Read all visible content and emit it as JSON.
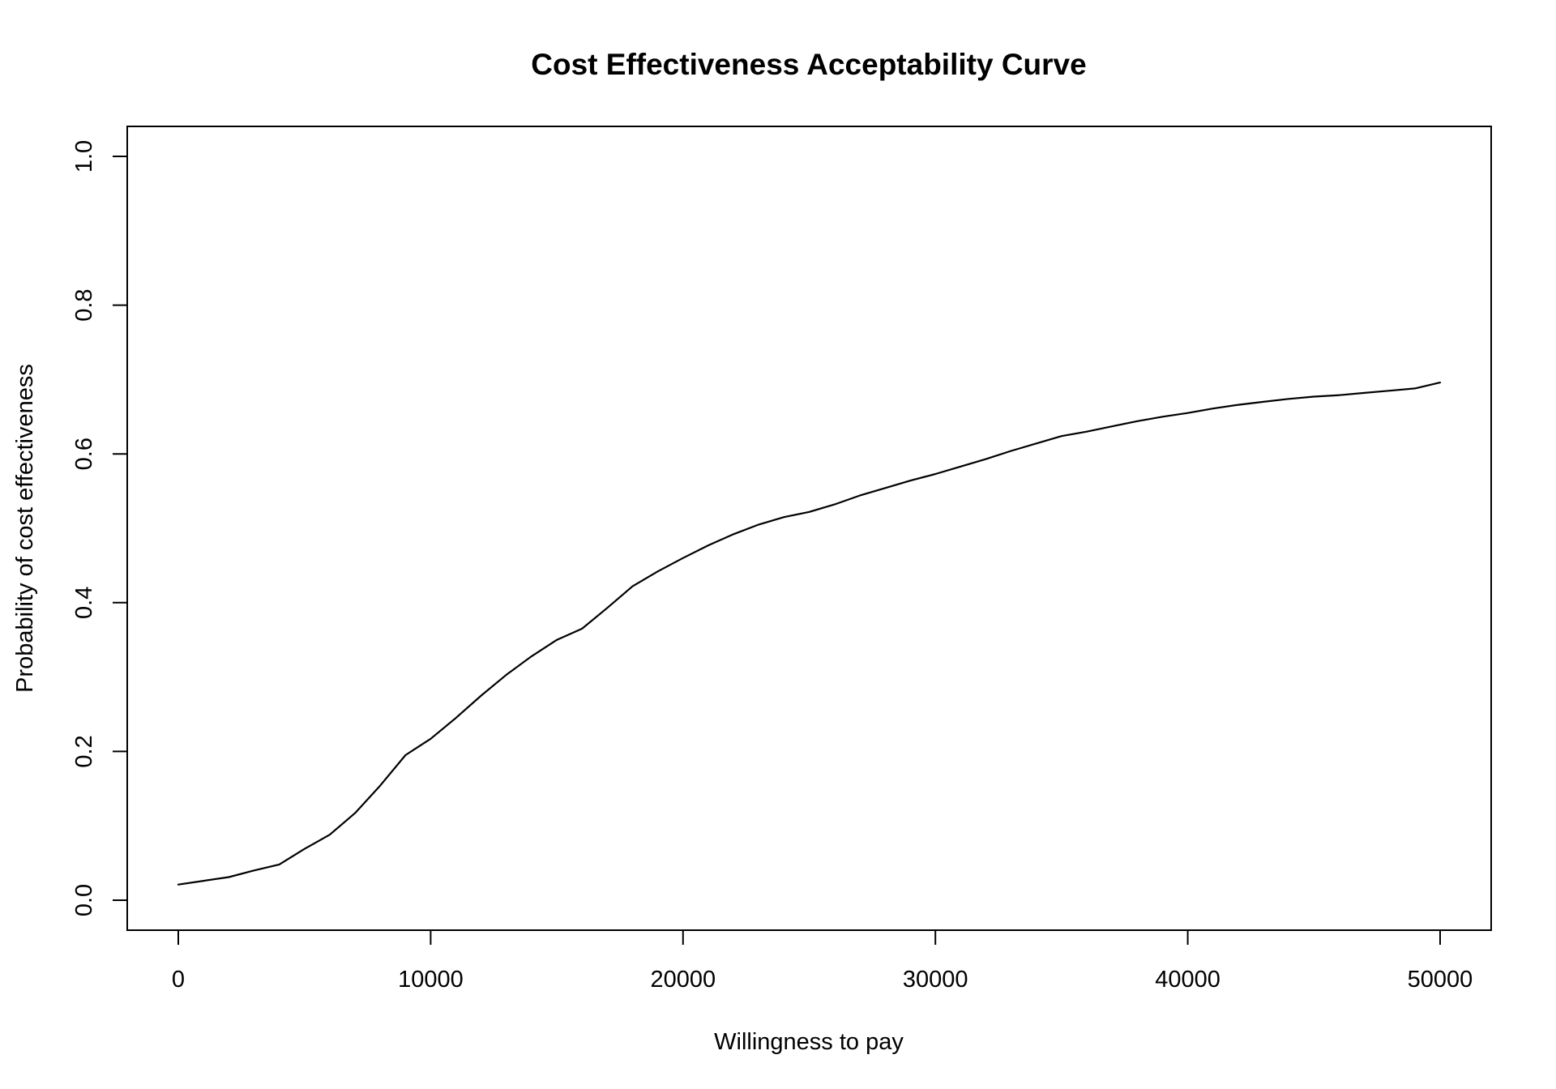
{
  "figure": {
    "background_color": "#ffffff",
    "foreground_color": "#000000"
  },
  "chart_data": {
    "type": "line",
    "title": "Cost Effectiveness Acceptability Curve",
    "xlabel": "Willingness to pay",
    "ylabel": "Probability of cost effectiveness",
    "xlim": [
      0,
      50000
    ],
    "ylim": [
      0.0,
      1.0
    ],
    "grid": false,
    "legend_position": "none",
    "x_tick_values": [
      0,
      10000,
      20000,
      30000,
      40000,
      50000
    ],
    "x_tick_labels": [
      "0",
      "10000",
      "20000",
      "30000",
      "40000",
      "50000"
    ],
    "y_tick_values": [
      0.0,
      0.2,
      0.4,
      0.6,
      0.8,
      1.0
    ],
    "y_tick_labels": [
      "0.0",
      "0.2",
      "0.4",
      "0.6",
      "0.8",
      "1.0"
    ],
    "series": [
      {
        "name": "CEAC",
        "line_color": "#000000",
        "x": [
          0,
          1000,
          2000,
          3000,
          4000,
          5000,
          6000,
          7000,
          8000,
          9000,
          10000,
          11000,
          12000,
          13000,
          14000,
          15000,
          16000,
          17000,
          18000,
          19000,
          20000,
          21000,
          22000,
          23000,
          24000,
          25000,
          26000,
          27000,
          28000,
          29000,
          30000,
          31000,
          32000,
          33000,
          34000,
          35000,
          36000,
          37000,
          38000,
          39000,
          40000,
          41000,
          42000,
          43000,
          44000,
          45000,
          46000,
          47000,
          48000,
          49000,
          50000
        ],
        "y": [
          0.021,
          0.026,
          0.031,
          0.04,
          0.048,
          0.069,
          0.088,
          0.117,
          0.154,
          0.195,
          0.217,
          0.245,
          0.275,
          0.303,
          0.328,
          0.35,
          0.365,
          0.393,
          0.422,
          0.442,
          0.46,
          0.477,
          0.492,
          0.505,
          0.515,
          0.522,
          0.532,
          0.544,
          0.554,
          0.564,
          0.573,
          0.583,
          0.593,
          0.604,
          0.614,
          0.624,
          0.63,
          0.637,
          0.644,
          0.65,
          0.655,
          0.661,
          0.666,
          0.67,
          0.674,
          0.677,
          0.679,
          0.682,
          0.685,
          0.688,
          0.696
        ]
      }
    ]
  }
}
